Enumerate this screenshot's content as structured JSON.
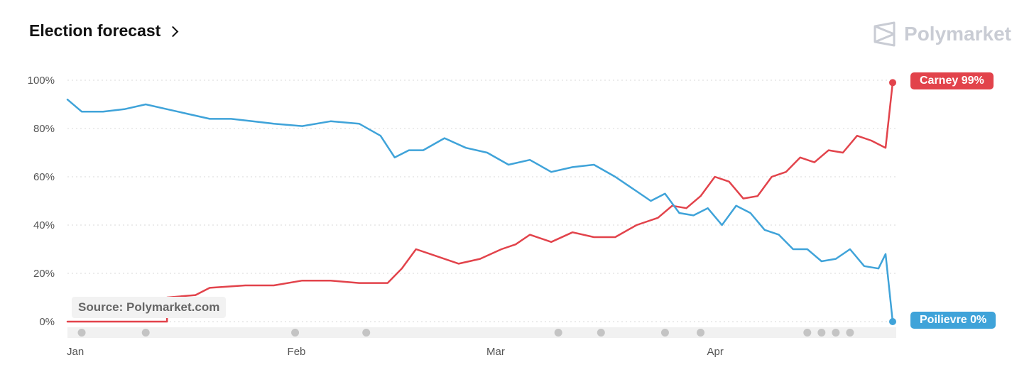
{
  "header": {
    "title": "Election forecast"
  },
  "brand": {
    "name": "Polymarket"
  },
  "source_label": "Source: Polymarket.com",
  "colors": {
    "carney": "#e2434b",
    "poilievre": "#3fa3d9",
    "grid": "#d9d9d9",
    "marker": "#c4c4c4"
  },
  "end_labels": {
    "carney": "Carney 99%",
    "poilievre": "Poilievre 0%"
  },
  "chart_data": {
    "type": "line",
    "title": "Election forecast",
    "x_ticks": [
      "Jan",
      "Feb",
      "Mar",
      "Apr"
    ],
    "y_ticks": [
      "100%",
      "80%",
      "60%",
      "40%",
      "20%",
      "0%"
    ],
    "ylim": [
      0,
      100
    ],
    "xlim": [
      "Jan 1",
      "Apr 27"
    ],
    "grid": "horizontal dotted",
    "legend": "end-of-line labels, right",
    "series": [
      {
        "name": "Carney",
        "points": [
          [
            "Jan 1",
            0
          ],
          [
            "Jan 15",
            0
          ],
          [
            "Jan 15",
            10
          ],
          [
            "Jan 19",
            11
          ],
          [
            "Jan 21",
            14
          ],
          [
            "Jan 26",
            15
          ],
          [
            "Jan 30",
            15
          ],
          [
            "Feb 3",
            17
          ],
          [
            "Feb 7",
            17
          ],
          [
            "Feb 11",
            16
          ],
          [
            "Feb 15",
            16
          ],
          [
            "Feb 17",
            22
          ],
          [
            "Feb 19",
            30
          ],
          [
            "Feb 21",
            28
          ],
          [
            "Feb 25",
            24
          ],
          [
            "Feb 28",
            26
          ],
          [
            "Mar 3",
            30
          ],
          [
            "Mar 5",
            32
          ],
          [
            "Mar 7",
            36
          ],
          [
            "Mar 10",
            33
          ],
          [
            "Mar 13",
            37
          ],
          [
            "Mar 16",
            35
          ],
          [
            "Mar 19",
            35
          ],
          [
            "Mar 22",
            40
          ],
          [
            "Mar 25",
            43
          ],
          [
            "Mar 27",
            48
          ],
          [
            "Mar 29",
            47
          ],
          [
            "Mar 31",
            52
          ],
          [
            "Apr 2",
            60
          ],
          [
            "Apr 4",
            58
          ],
          [
            "Apr 6",
            51
          ],
          [
            "Apr 8",
            52
          ],
          [
            "Apr 10",
            60
          ],
          [
            "Apr 12",
            62
          ],
          [
            "Apr 14",
            68
          ],
          [
            "Apr 16",
            66
          ],
          [
            "Apr 18",
            71
          ],
          [
            "Apr 20",
            70
          ],
          [
            "Apr 22",
            77
          ],
          [
            "Apr 24",
            75
          ],
          [
            "Apr 26",
            72
          ],
          [
            "Apr 27",
            99
          ]
        ]
      },
      {
        "name": "Poilievre",
        "points": [
          [
            "Jan 1",
            92
          ],
          [
            "Jan 3",
            87
          ],
          [
            "Jan 6",
            87
          ],
          [
            "Jan 9",
            88
          ],
          [
            "Jan 12",
            90
          ],
          [
            "Jan 15",
            88
          ],
          [
            "Jan 18",
            86
          ],
          [
            "Jan 21",
            84
          ],
          [
            "Jan 24",
            84
          ],
          [
            "Jan 27",
            83
          ],
          [
            "Jan 30",
            82
          ],
          [
            "Feb 3",
            81
          ],
          [
            "Feb 7",
            83
          ],
          [
            "Feb 11",
            82
          ],
          [
            "Feb 14",
            77
          ],
          [
            "Feb 16",
            68
          ],
          [
            "Feb 18",
            71
          ],
          [
            "Feb 20",
            71
          ],
          [
            "Feb 23",
            76
          ],
          [
            "Feb 26",
            72
          ],
          [
            "Mar 1",
            70
          ],
          [
            "Mar 4",
            65
          ],
          [
            "Mar 7",
            67
          ],
          [
            "Mar 10",
            62
          ],
          [
            "Mar 13",
            64
          ],
          [
            "Mar 16",
            65
          ],
          [
            "Mar 19",
            60
          ],
          [
            "Mar 22",
            54
          ],
          [
            "Mar 24",
            50
          ],
          [
            "Mar 26",
            53
          ],
          [
            "Mar 28",
            45
          ],
          [
            "Mar 30",
            44
          ],
          [
            "Apr 1",
            47
          ],
          [
            "Apr 3",
            40
          ],
          [
            "Apr 5",
            48
          ],
          [
            "Apr 7",
            45
          ],
          [
            "Apr 9",
            38
          ],
          [
            "Apr 11",
            36
          ],
          [
            "Apr 13",
            30
          ],
          [
            "Apr 15",
            30
          ],
          [
            "Apr 17",
            25
          ],
          [
            "Apr 19",
            26
          ],
          [
            "Apr 21",
            30
          ],
          [
            "Apr 23",
            23
          ],
          [
            "Apr 25",
            22
          ],
          [
            "Apr 26",
            28
          ],
          [
            "Apr 27",
            0
          ]
        ]
      }
    ],
    "event_markers": [
      "Jan 3",
      "Jan 12",
      "Feb 2",
      "Feb 12",
      "Mar 11",
      "Mar 17",
      "Mar 26",
      "Mar 31",
      "Apr 15",
      "Apr 17",
      "Apr 19",
      "Apr 21"
    ]
  }
}
